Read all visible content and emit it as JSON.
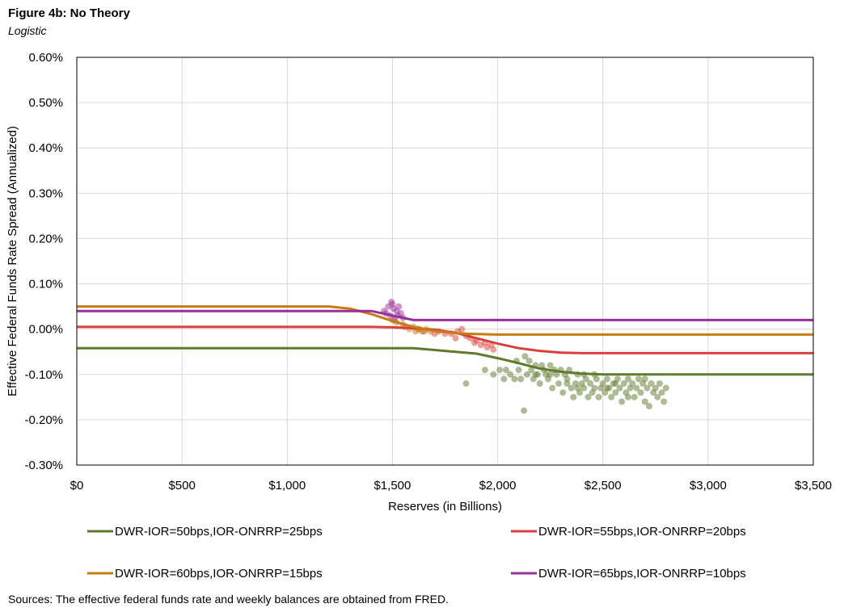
{
  "title": "Figure 4b: No Theory",
  "subtitle": "Logistic",
  "source": "Sources: The effective federal funds rate and weekly balances are obtained from FRED.",
  "chart_data": {
    "type": "line",
    "xlabel": "Reserves (in Billions)",
    "ylabel": "Effective Federal Funds Rate Spread (Annualized)",
    "xlim": [
      0,
      3500
    ],
    "ylim": [
      -0.3,
      0.6
    ],
    "x_ticks": [
      0,
      500,
      1000,
      1500,
      2000,
      2500,
      3000,
      3500
    ],
    "x_tick_labels": [
      "$0",
      "$500",
      "$1,000",
      "$1,500",
      "$2,000",
      "$2,500",
      "$3,000",
      "$3,500"
    ],
    "y_ticks": [
      -0.3,
      -0.2,
      -0.1,
      0.0,
      0.1,
      0.2,
      0.3,
      0.4,
      0.5,
      0.6
    ],
    "y_tick_labels": [
      "-0.30%",
      "-0.20%",
      "-0.10%",
      "0.00%",
      "0.10%",
      "0.20%",
      "0.30%",
      "0.40%",
      "0.50%",
      "0.60%"
    ],
    "grid": true,
    "legend_position": "bottom",
    "series": [
      {
        "name": "DWR-IOR=50bps,IOR-ONRRP=25bps",
        "color": "#5e7a2c",
        "x": [
          0,
          1600,
          1700,
          1800,
          1900,
          2000,
          2100,
          2200,
          2300,
          2400,
          2500,
          3500
        ],
        "y": [
          -0.042,
          -0.042,
          -0.046,
          -0.05,
          -0.054,
          -0.064,
          -0.075,
          -0.087,
          -0.094,
          -0.098,
          -0.1,
          -0.1
        ],
        "scatter": [
          [
            1850,
            -0.12
          ],
          [
            1940,
            -0.09
          ],
          [
            1980,
            -0.1
          ],
          [
            2010,
            -0.09
          ],
          [
            2030,
            -0.11
          ],
          [
            2040,
            -0.09
          ],
          [
            2060,
            -0.1
          ],
          [
            2080,
            -0.11
          ],
          [
            2090,
            -0.07
          ],
          [
            2100,
            -0.09
          ],
          [
            2110,
            -0.11
          ],
          [
            2125,
            -0.18
          ],
          [
            2130,
            -0.06
          ],
          [
            2140,
            -0.1
          ],
          [
            2150,
            -0.07
          ],
          [
            2160,
            -0.09
          ],
          [
            2170,
            -0.11
          ],
          [
            2180,
            -0.08
          ],
          [
            2190,
            -0.1
          ],
          [
            2200,
            -0.12
          ],
          [
            2210,
            -0.08
          ],
          [
            2220,
            -0.09
          ],
          [
            2230,
            -0.1
          ],
          [
            2240,
            -0.11
          ],
          [
            2250,
            -0.08
          ],
          [
            2260,
            -0.13
          ],
          [
            2270,
            -0.09
          ],
          [
            2280,
            -0.1
          ],
          [
            2290,
            -0.12
          ],
          [
            2300,
            -0.09
          ],
          [
            2310,
            -0.14
          ],
          [
            2320,
            -0.1
          ],
          [
            2330,
            -0.11
          ],
          [
            2340,
            -0.09
          ],
          [
            2350,
            -0.13
          ],
          [
            2360,
            -0.15
          ],
          [
            2370,
            -0.12
          ],
          [
            2380,
            -0.1
          ],
          [
            2390,
            -0.14
          ],
          [
            2400,
            -0.12
          ],
          [
            2410,
            -0.13
          ],
          [
            2420,
            -0.11
          ],
          [
            2430,
            -0.15
          ],
          [
            2440,
            -0.12
          ],
          [
            2450,
            -0.14
          ],
          [
            2460,
            -0.13
          ],
          [
            2470,
            -0.11
          ],
          [
            2480,
            -0.15
          ],
          [
            2490,
            -0.13
          ],
          [
            2500,
            -0.12
          ],
          [
            2510,
            -0.14
          ],
          [
            2520,
            -0.11
          ],
          [
            2530,
            -0.13
          ],
          [
            2540,
            -0.15
          ],
          [
            2550,
            -0.12
          ],
          [
            2560,
            -0.14
          ],
          [
            2570,
            -0.11
          ],
          [
            2580,
            -0.13
          ],
          [
            2590,
            -0.16
          ],
          [
            2600,
            -0.12
          ],
          [
            2610,
            -0.14
          ],
          [
            2620,
            -0.11
          ],
          [
            2630,
            -0.13
          ],
          [
            2640,
            -0.12
          ],
          [
            2650,
            -0.15
          ],
          [
            2660,
            -0.13
          ],
          [
            2670,
            -0.11
          ],
          [
            2680,
            -0.14
          ],
          [
            2690,
            -0.12
          ],
          [
            2700,
            -0.16
          ],
          [
            2710,
            -0.13
          ],
          [
            2720,
            -0.17
          ],
          [
            2730,
            -0.12
          ],
          [
            2740,
            -0.14
          ],
          [
            2750,
            -0.13
          ],
          [
            2760,
            -0.15
          ],
          [
            2770,
            -0.12
          ],
          [
            2780,
            -0.14
          ],
          [
            2790,
            -0.16
          ],
          [
            2800,
            -0.13
          ],
          [
            2250,
            -0.1
          ],
          [
            2330,
            -0.12
          ],
          [
            2410,
            -0.1
          ],
          [
            2520,
            -0.13
          ],
          [
            2620,
            -0.15
          ],
          [
            2700,
            -0.11
          ],
          [
            2460,
            -0.1
          ],
          [
            2380,
            -0.13
          ],
          [
            2560,
            -0.12
          ],
          [
            2180,
            -0.1
          ]
        ]
      },
      {
        "name": "DWR-IOR=55bps,IOR-ONRRP=20bps",
        "color": "#d9403b",
        "x": [
          0,
          1400,
          1500,
          1600,
          1700,
          1800,
          1900,
          2000,
          2100,
          2200,
          2300,
          2400,
          3500
        ],
        "y": [
          0.005,
          0.005,
          0.004,
          0.002,
          -0.001,
          -0.008,
          -0.02,
          -0.032,
          -0.042,
          -0.048,
          -0.052,
          -0.053,
          -0.053
        ],
        "scatter": [
          [
            1620,
            0.0
          ],
          [
            1650,
            -0.005
          ],
          [
            1700,
            -0.01
          ],
          [
            1720,
            -0.005
          ],
          [
            1750,
            -0.01
          ],
          [
            1780,
            -0.01
          ],
          [
            1800,
            -0.02
          ],
          [
            1810,
            -0.005
          ],
          [
            1830,
            0.0
          ],
          [
            1850,
            -0.015
          ],
          [
            1870,
            -0.02
          ],
          [
            1890,
            -0.03
          ],
          [
            1900,
            -0.025
          ],
          [
            1920,
            -0.035
          ],
          [
            1940,
            -0.03
          ],
          [
            1950,
            -0.04
          ],
          [
            1970,
            -0.035
          ],
          [
            1980,
            -0.045
          ]
        ]
      },
      {
        "name": "DWR-IOR=60bps,IOR-ONRRP=15bps",
        "color": "#c77c11",
        "x": [
          0,
          1200,
          1300,
          1400,
          1500,
          1600,
          1700,
          1800,
          1900,
          2000,
          3500
        ],
        "y": [
          0.05,
          0.05,
          0.045,
          0.033,
          0.018,
          0.005,
          -0.004,
          -0.009,
          -0.011,
          -0.012,
          -0.012
        ],
        "scatter": [
          [
            1500,
            0.02
          ],
          [
            1520,
            0.015
          ],
          [
            1550,
            0.01
          ],
          [
            1560,
            0.005
          ],
          [
            1580,
            0.0
          ],
          [
            1600,
            0.005
          ],
          [
            1610,
            -0.005
          ],
          [
            1630,
            0.0
          ],
          [
            1640,
            -0.005
          ],
          [
            1660,
            0.0
          ],
          [
            1680,
            -0.005
          ]
        ]
      },
      {
        "name": "DWR-IOR=65bps,IOR-ONRRP=10bps",
        "color": "#9b2d9b",
        "x": [
          0,
          1400,
          1500,
          1600,
          3500
        ],
        "y": [
          0.04,
          0.04,
          0.03,
          0.02,
          0.02
        ],
        "scatter": [
          [
            1460,
            0.04
          ],
          [
            1470,
            0.035
          ],
          [
            1480,
            0.05
          ],
          [
            1490,
            0.03
          ],
          [
            1500,
            0.055
          ],
          [
            1505,
            0.045
          ],
          [
            1510,
            0.02
          ],
          [
            1520,
            0.04
          ],
          [
            1525,
            0.03
          ],
          [
            1530,
            0.05
          ],
          [
            1540,
            0.035
          ],
          [
            1550,
            0.025
          ],
          [
            1495,
            0.06
          ]
        ]
      }
    ]
  }
}
